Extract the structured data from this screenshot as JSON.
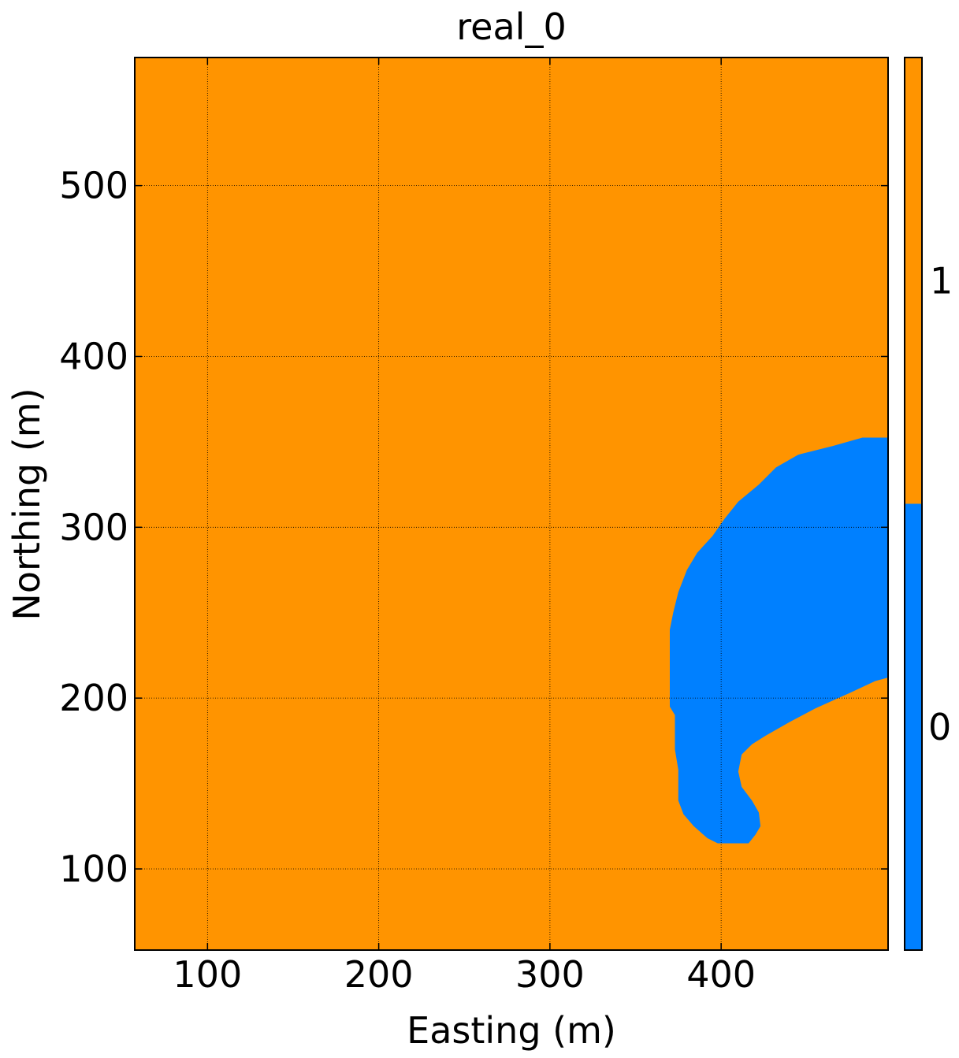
{
  "chart_data": {
    "type": "heatmap",
    "title": "real_0",
    "xlabel": "Easting (m)",
    "ylabel": "Northing (m)",
    "xlim": [
      57.5,
      497.5
    ],
    "ylim": [
      52.5,
      575
    ],
    "xticks": [
      "100",
      "200",
      "300",
      "400"
    ],
    "yticks": [
      "100",
      "200",
      "300",
      "400",
      "500"
    ],
    "xtick_values": [
      100,
      200,
      300,
      400
    ],
    "ytick_values": [
      100,
      200,
      300,
      400,
      500
    ],
    "grid": true,
    "categories": [
      "0",
      "1"
    ],
    "colors": {
      "0": "#0080ff",
      "1": "#ff9400"
    },
    "background_category": "1",
    "colorbar_split_fraction": 0.5,
    "region_category": "0",
    "region_outline": [
      [
        497.5,
        352.5
      ],
      [
        482.5,
        352.5
      ],
      [
        465,
        347.5
      ],
      [
        445,
        342.5
      ],
      [
        432,
        335
      ],
      [
        422,
        325
      ],
      [
        410,
        315
      ],
      [
        402,
        305
      ],
      [
        395,
        295
      ],
      [
        386,
        285
      ],
      [
        380,
        275
      ],
      [
        375,
        262
      ],
      [
        372,
        250
      ],
      [
        370,
        240
      ],
      [
        370,
        225
      ],
      [
        370,
        195
      ],
      [
        373,
        190
      ],
      [
        373,
        170
      ],
      [
        375,
        158
      ],
      [
        375,
        140
      ],
      [
        378,
        132
      ],
      [
        384,
        125
      ],
      [
        392,
        118
      ],
      [
        398,
        115
      ],
      [
        416,
        115
      ],
      [
        420,
        120
      ],
      [
        423,
        125
      ],
      [
        422,
        133
      ],
      [
        418,
        140
      ],
      [
        412,
        148
      ],
      [
        410,
        157
      ],
      [
        412,
        167
      ],
      [
        418,
        173
      ],
      [
        426,
        178
      ],
      [
        440,
        186
      ],
      [
        455,
        194
      ],
      [
        475,
        203
      ],
      [
        490,
        210
      ],
      [
        497.5,
        212
      ]
    ]
  }
}
